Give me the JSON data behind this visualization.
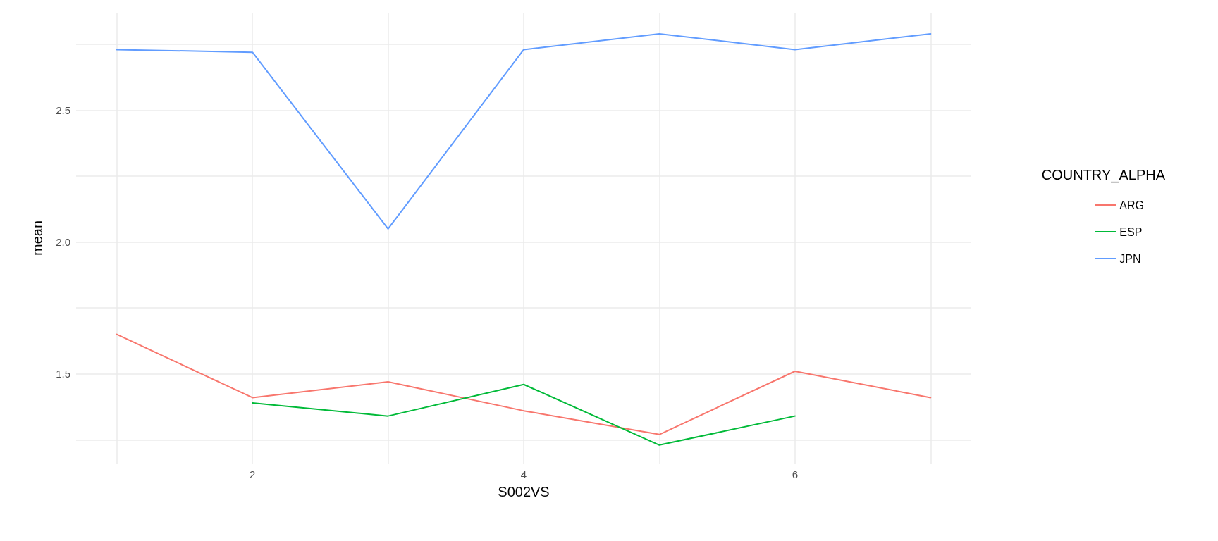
{
  "chart_data": {
    "type": "line",
    "xlabel": "S002VS",
    "ylabel": "mean",
    "legend_title": "COUNTRY_ALPHA",
    "legend": "right",
    "grid": true,
    "marker": "none",
    "line_style": "solid",
    "xlim": [
      0.7,
      7.3
    ],
    "xticks": [
      {
        "value": 1,
        "label": null
      },
      2,
      {
        "value": 3,
        "label": null
      },
      4,
      {
        "value": 5,
        "label": null
      },
      6,
      {
        "value": 7,
        "label": null
      }
    ],
    "ylim": [
      1.16,
      2.87
    ],
    "yticks": [
      {
        "value": 1.25,
        "label": null
      },
      1.5,
      {
        "value": 1.75,
        "label": null
      },
      {
        "value": 2,
        "label": "2.0"
      },
      {
        "value": 2.25,
        "label": null
      },
      2.5,
      {
        "value": 2.75,
        "label": null
      }
    ],
    "series": [
      {
        "name": "ARG",
        "color": "#f8766d",
        "x": [
          1,
          2,
          3,
          4,
          5,
          6,
          7
        ],
        "values": [
          1.65,
          1.41,
          1.47,
          1.36,
          1.27,
          1.51,
          1.41
        ]
      },
      {
        "name": "ESP",
        "color": "#00ba38",
        "x": [
          2,
          3,
          4,
          5,
          6
        ],
        "values": [
          1.39,
          1.34,
          1.46,
          1.23,
          1.34
        ]
      },
      {
        "name": "JPN",
        "color": "#619cff",
        "x": [
          1,
          2,
          3,
          4,
          5,
          6,
          7
        ],
        "values": [
          2.73,
          2.72,
          2.05,
          2.73,
          2.79,
          2.73,
          2.79
        ]
      }
    ]
  }
}
